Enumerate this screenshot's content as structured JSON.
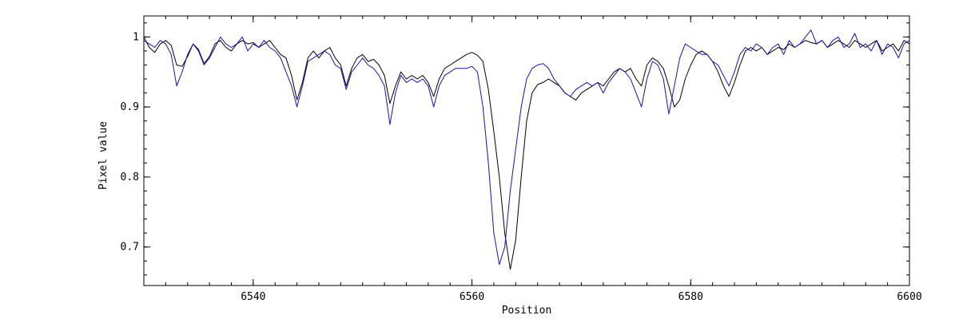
{
  "chart_data": {
    "type": "line",
    "xlabel": "Position",
    "ylabel": "Pixel value",
    "xlim": [
      6530,
      6600
    ],
    "ylim": [
      0.645,
      1.03
    ],
    "x_ticks": [
      6540,
      6560,
      6580,
      6600
    ],
    "x_tick_labels": [
      "6540",
      "6560",
      "6580",
      "6600"
    ],
    "y_ticks": [
      0.7,
      0.8,
      0.9,
      1.0
    ],
    "y_tick_labels": [
      "0.7",
      "0.8",
      "0.9",
      "1"
    ],
    "grid": false,
    "series": [
      {
        "color": "#000000",
        "points": [
          [
            6530.0,
            1.0
          ],
          [
            6530.5,
            0.985
          ],
          [
            6531.0,
            0.978
          ],
          [
            6531.5,
            0.99
          ],
          [
            6532.0,
            0.995
          ],
          [
            6532.5,
            0.988
          ],
          [
            6533.0,
            0.96
          ],
          [
            6533.5,
            0.958
          ],
          [
            6534.0,
            0.972
          ],
          [
            6534.5,
            0.99
          ],
          [
            6535.0,
            0.982
          ],
          [
            6535.5,
            0.962
          ],
          [
            6536.0,
            0.972
          ],
          [
            6536.5,
            0.99
          ],
          [
            6537.0,
            0.995
          ],
          [
            6537.5,
            0.985
          ],
          [
            6538.0,
            0.98
          ],
          [
            6538.5,
            0.99
          ],
          [
            6539.0,
            0.995
          ],
          [
            6539.5,
            0.99
          ],
          [
            6540.0,
            0.992
          ],
          [
            6540.5,
            0.985
          ],
          [
            6541.0,
            0.99
          ],
          [
            6541.5,
            0.995
          ],
          [
            6542.0,
            0.985
          ],
          [
            6542.5,
            0.975
          ],
          [
            6543.0,
            0.97
          ],
          [
            6543.5,
            0.945
          ],
          [
            6544.0,
            0.91
          ],
          [
            6544.5,
            0.935
          ],
          [
            6545.0,
            0.97
          ],
          [
            6545.5,
            0.98
          ],
          [
            6546.0,
            0.97
          ],
          [
            6546.5,
            0.98
          ],
          [
            6547.0,
            0.985
          ],
          [
            6547.5,
            0.97
          ],
          [
            6548.0,
            0.96
          ],
          [
            6548.5,
            0.93
          ],
          [
            6549.0,
            0.955
          ],
          [
            6549.5,
            0.97
          ],
          [
            6550.0,
            0.975
          ],
          [
            6550.5,
            0.965
          ],
          [
            6551.0,
            0.968
          ],
          [
            6551.5,
            0.96
          ],
          [
            6552.0,
            0.945
          ],
          [
            6552.5,
            0.905
          ],
          [
            6553.0,
            0.93
          ],
          [
            6553.5,
            0.95
          ],
          [
            6554.0,
            0.94
          ],
          [
            6554.5,
            0.945
          ],
          [
            6555.0,
            0.94
          ],
          [
            6555.5,
            0.945
          ],
          [
            6556.0,
            0.935
          ],
          [
            6556.5,
            0.915
          ],
          [
            6557.0,
            0.94
          ],
          [
            6557.5,
            0.955
          ],
          [
            6558.0,
            0.96
          ],
          [
            6558.5,
            0.965
          ],
          [
            6559.0,
            0.97
          ],
          [
            6559.5,
            0.975
          ],
          [
            6560.0,
            0.978
          ],
          [
            6560.5,
            0.974
          ],
          [
            6561.0,
            0.965
          ],
          [
            6561.5,
            0.925
          ],
          [
            6562.0,
            0.865
          ],
          [
            6562.5,
            0.8
          ],
          [
            6563.0,
            0.72
          ],
          [
            6563.5,
            0.668
          ],
          [
            6564.0,
            0.71
          ],
          [
            6564.5,
            0.8
          ],
          [
            6565.0,
            0.88
          ],
          [
            6565.5,
            0.92
          ],
          [
            6566.0,
            0.932
          ],
          [
            6566.5,
            0.935
          ],
          [
            6567.0,
            0.94
          ],
          [
            6567.5,
            0.935
          ],
          [
            6568.0,
            0.93
          ],
          [
            6568.5,
            0.92
          ],
          [
            6569.0,
            0.915
          ],
          [
            6569.5,
            0.91
          ],
          [
            6570.0,
            0.92
          ],
          [
            6570.5,
            0.925
          ],
          [
            6571.0,
            0.93
          ],
          [
            6571.5,
            0.935
          ],
          [
            6572.0,
            0.93
          ],
          [
            6572.5,
            0.94
          ],
          [
            6573.0,
            0.95
          ],
          [
            6573.5,
            0.955
          ],
          [
            6574.0,
            0.95
          ],
          [
            6574.5,
            0.955
          ],
          [
            6575.0,
            0.94
          ],
          [
            6575.5,
            0.93
          ],
          [
            6576.0,
            0.96
          ],
          [
            6576.5,
            0.97
          ],
          [
            6577.0,
            0.965
          ],
          [
            6577.5,
            0.955
          ],
          [
            6578.0,
            0.93
          ],
          [
            6578.5,
            0.9
          ],
          [
            6579.0,
            0.91
          ],
          [
            6579.5,
            0.94
          ],
          [
            6580.0,
            0.96
          ],
          [
            6580.5,
            0.975
          ],
          [
            6581.0,
            0.98
          ],
          [
            6581.5,
            0.975
          ],
          [
            6582.0,
            0.965
          ],
          [
            6582.5,
            0.95
          ],
          [
            6583.0,
            0.93
          ],
          [
            6583.5,
            0.915
          ],
          [
            6584.0,
            0.935
          ],
          [
            6584.5,
            0.96
          ],
          [
            6585.0,
            0.98
          ],
          [
            6585.5,
            0.985
          ],
          [
            6586.0,
            0.98
          ],
          [
            6586.5,
            0.985
          ],
          [
            6587.0,
            0.975
          ],
          [
            6587.5,
            0.98
          ],
          [
            6588.0,
            0.985
          ],
          [
            6588.5,
            0.982
          ],
          [
            6589.0,
            0.99
          ],
          [
            6589.5,
            0.985
          ],
          [
            6590.0,
            0.99
          ],
          [
            6590.5,
            0.995
          ],
          [
            6591.0,
            0.992
          ],
          [
            6591.5,
            0.99
          ],
          [
            6592.0,
            0.995
          ],
          [
            6592.5,
            0.985
          ],
          [
            6593.0,
            0.99
          ],
          [
            6593.5,
            0.995
          ],
          [
            6594.0,
            0.99
          ],
          [
            6594.5,
            0.985
          ],
          [
            6595.0,
            0.995
          ],
          [
            6595.5,
            0.99
          ],
          [
            6596.0,
            0.985
          ],
          [
            6596.5,
            0.99
          ],
          [
            6597.0,
            0.995
          ],
          [
            6597.5,
            0.98
          ],
          [
            6598.0,
            0.985
          ],
          [
            6598.5,
            0.99
          ],
          [
            6599.0,
            0.98
          ],
          [
            6599.5,
            0.995
          ],
          [
            6600.0,
            0.99
          ]
        ]
      },
      {
        "color": "#1414b4",
        "points": [
          [
            6530.0,
            0.995
          ],
          [
            6530.5,
            0.99
          ],
          [
            6531.0,
            0.985
          ],
          [
            6531.5,
            0.995
          ],
          [
            6532.0,
            0.99
          ],
          [
            6532.5,
            0.975
          ],
          [
            6533.0,
            0.93
          ],
          [
            6533.5,
            0.95
          ],
          [
            6534.0,
            0.975
          ],
          [
            6534.5,
            0.99
          ],
          [
            6535.0,
            0.98
          ],
          [
            6535.5,
            0.96
          ],
          [
            6536.0,
            0.97
          ],
          [
            6536.5,
            0.985
          ],
          [
            6537.0,
            1.0
          ],
          [
            6537.5,
            0.99
          ],
          [
            6538.0,
            0.985
          ],
          [
            6538.5,
            0.99
          ],
          [
            6539.0,
            1.0
          ],
          [
            6539.5,
            0.98
          ],
          [
            6540.0,
            0.99
          ],
          [
            6540.5,
            0.985
          ],
          [
            6541.0,
            0.995
          ],
          [
            6541.5,
            0.985
          ],
          [
            6542.0,
            0.98
          ],
          [
            6542.5,
            0.97
          ],
          [
            6543.0,
            0.95
          ],
          [
            6543.5,
            0.93
          ],
          [
            6544.0,
            0.9
          ],
          [
            6544.5,
            0.93
          ],
          [
            6545.0,
            0.965
          ],
          [
            6545.5,
            0.97
          ],
          [
            6546.0,
            0.975
          ],
          [
            6546.5,
            0.98
          ],
          [
            6547.0,
            0.975
          ],
          [
            6547.5,
            0.96
          ],
          [
            6548.0,
            0.955
          ],
          [
            6548.5,
            0.925
          ],
          [
            6549.0,
            0.95
          ],
          [
            6549.5,
            0.96
          ],
          [
            6550.0,
            0.97
          ],
          [
            6550.5,
            0.96
          ],
          [
            6551.0,
            0.955
          ],
          [
            6551.5,
            0.945
          ],
          [
            6552.0,
            0.93
          ],
          [
            6552.5,
            0.875
          ],
          [
            6553.0,
            0.92
          ],
          [
            6553.5,
            0.945
          ],
          [
            6554.0,
            0.935
          ],
          [
            6554.5,
            0.94
          ],
          [
            6555.0,
            0.935
          ],
          [
            6555.5,
            0.94
          ],
          [
            6556.0,
            0.93
          ],
          [
            6556.5,
            0.9
          ],
          [
            6557.0,
            0.93
          ],
          [
            6557.5,
            0.945
          ],
          [
            6558.0,
            0.95
          ],
          [
            6558.5,
            0.955
          ],
          [
            6559.0,
            0.955
          ],
          [
            6559.5,
            0.955
          ],
          [
            6560.0,
            0.958
          ],
          [
            6560.5,
            0.95
          ],
          [
            6561.0,
            0.9
          ],
          [
            6561.5,
            0.82
          ],
          [
            6562.0,
            0.72
          ],
          [
            6562.5,
            0.675
          ],
          [
            6563.0,
            0.7
          ],
          [
            6563.5,
            0.78
          ],
          [
            6564.0,
            0.84
          ],
          [
            6564.5,
            0.9
          ],
          [
            6565.0,
            0.94
          ],
          [
            6565.5,
            0.955
          ],
          [
            6566.0,
            0.96
          ],
          [
            6566.5,
            0.962
          ],
          [
            6567.0,
            0.955
          ],
          [
            6567.5,
            0.94
          ],
          [
            6568.0,
            0.93
          ],
          [
            6568.5,
            0.92
          ],
          [
            6569.0,
            0.915
          ],
          [
            6569.5,
            0.925
          ],
          [
            6570.0,
            0.93
          ],
          [
            6570.5,
            0.935
          ],
          [
            6571.0,
            0.93
          ],
          [
            6571.5,
            0.935
          ],
          [
            6572.0,
            0.92
          ],
          [
            6572.5,
            0.935
          ],
          [
            6573.0,
            0.945
          ],
          [
            6573.5,
            0.955
          ],
          [
            6574.0,
            0.95
          ],
          [
            6574.5,
            0.94
          ],
          [
            6575.0,
            0.92
          ],
          [
            6575.5,
            0.9
          ],
          [
            6576.0,
            0.94
          ],
          [
            6576.5,
            0.965
          ],
          [
            6577.0,
            0.96
          ],
          [
            6577.5,
            0.94
          ],
          [
            6578.0,
            0.89
          ],
          [
            6578.5,
            0.93
          ],
          [
            6579.0,
            0.97
          ],
          [
            6579.5,
            0.99
          ],
          [
            6580.0,
            0.985
          ],
          [
            6580.5,
            0.98
          ],
          [
            6581.0,
            0.975
          ],
          [
            6581.5,
            0.975
          ],
          [
            6582.0,
            0.965
          ],
          [
            6582.5,
            0.96
          ],
          [
            6583.0,
            0.945
          ],
          [
            6583.5,
            0.93
          ],
          [
            6584.0,
            0.95
          ],
          [
            6584.5,
            0.975
          ],
          [
            6585.0,
            0.985
          ],
          [
            6585.5,
            0.98
          ],
          [
            6586.0,
            0.99
          ],
          [
            6586.5,
            0.985
          ],
          [
            6587.0,
            0.975
          ],
          [
            6587.5,
            0.985
          ],
          [
            6588.0,
            0.99
          ],
          [
            6588.5,
            0.975
          ],
          [
            6589.0,
            0.995
          ],
          [
            6589.5,
            0.985
          ],
          [
            6590.0,
            0.99
          ],
          [
            6590.5,
            1.0
          ],
          [
            6591.0,
            1.01
          ],
          [
            6591.5,
            0.99
          ],
          [
            6592.0,
            0.995
          ],
          [
            6592.5,
            0.985
          ],
          [
            6593.0,
            0.995
          ],
          [
            6593.5,
            1.0
          ],
          [
            6594.0,
            0.985
          ],
          [
            6594.5,
            0.99
          ],
          [
            6595.0,
            1.005
          ],
          [
            6595.5,
            0.985
          ],
          [
            6596.0,
            0.99
          ],
          [
            6596.5,
            0.98
          ],
          [
            6597.0,
            0.995
          ],
          [
            6597.5,
            0.975
          ],
          [
            6598.0,
            0.99
          ],
          [
            6598.5,
            0.985
          ],
          [
            6599.0,
            0.97
          ],
          [
            6599.5,
            0.99
          ],
          [
            6600.0,
            0.995
          ]
        ]
      }
    ]
  }
}
